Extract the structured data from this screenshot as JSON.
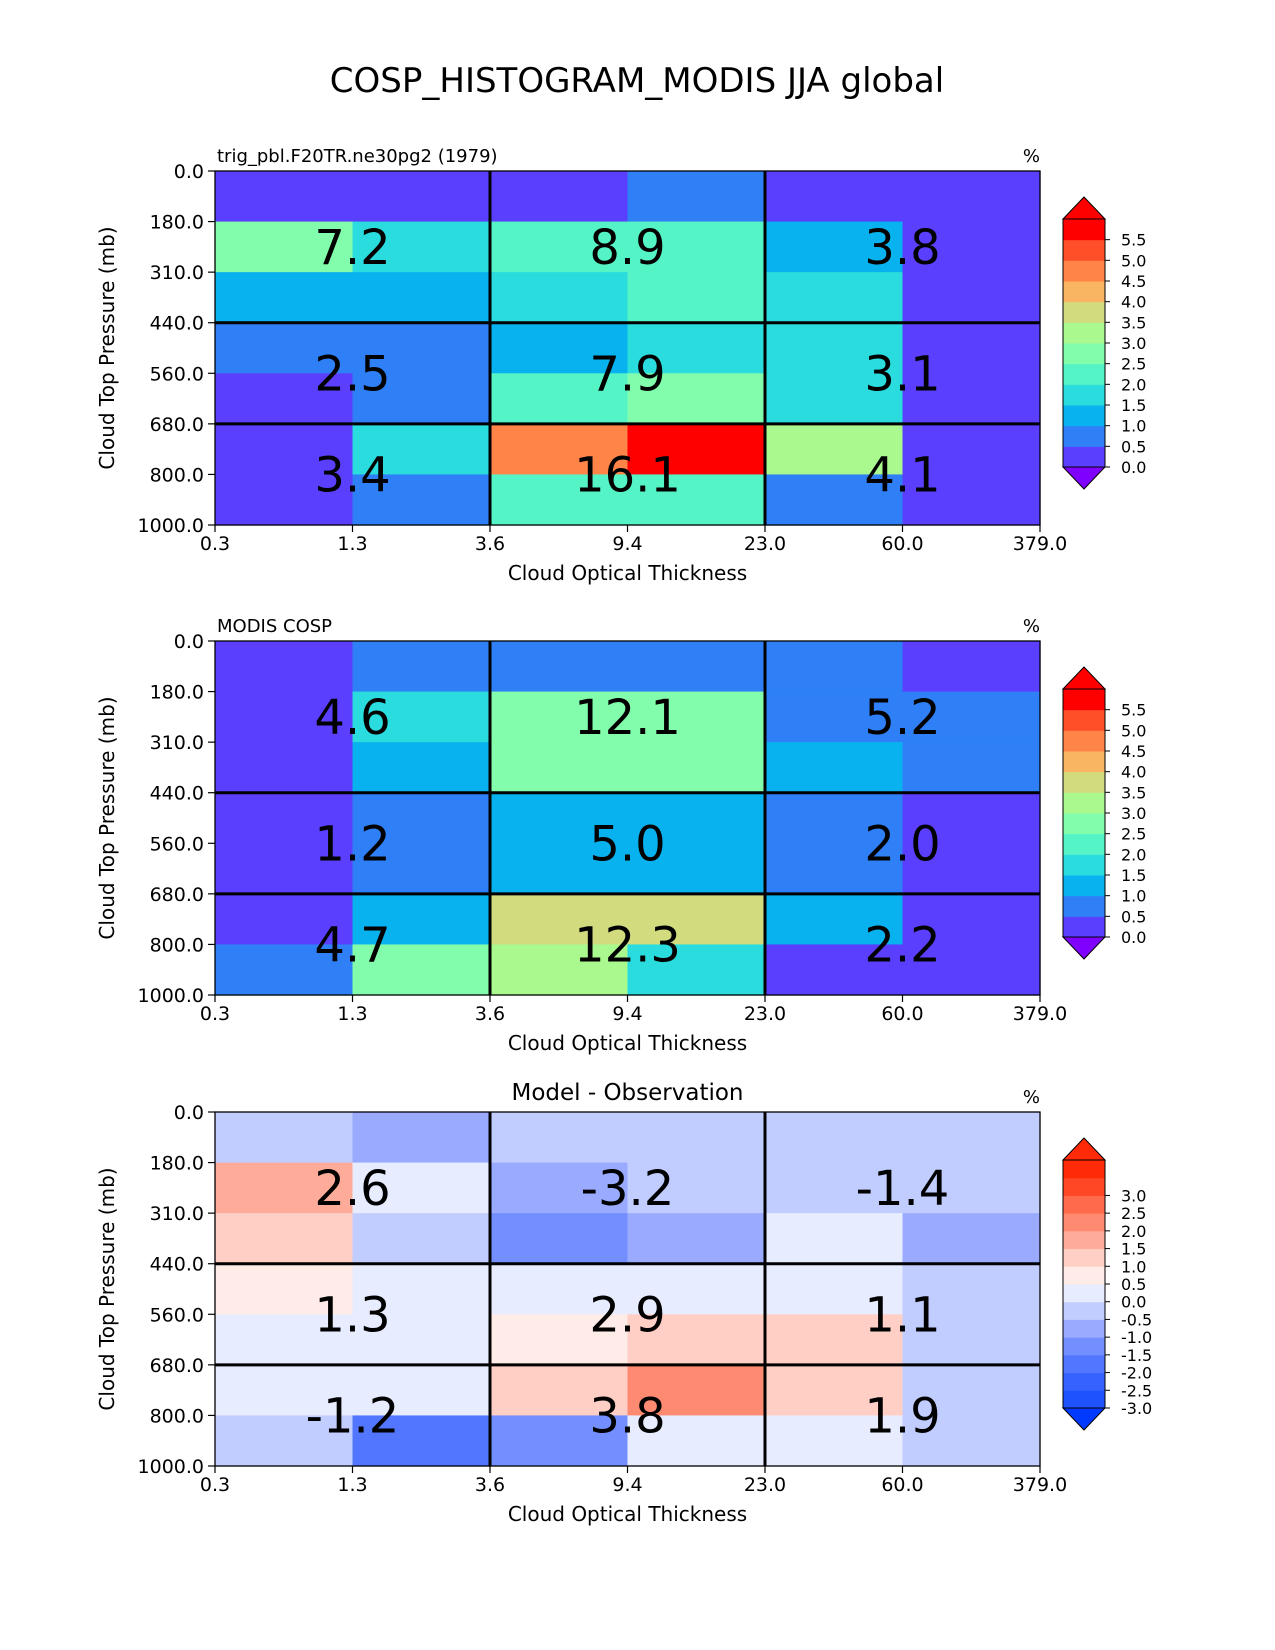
{
  "figure": {
    "suptitle": "COSP_HISTOGRAM_MODIS JJA global"
  },
  "chart_data": [
    {
      "type": "heatmap",
      "title_left": "trig_pbl.F20TR.ne30pg2 (1979)",
      "title_center": "",
      "units": "%",
      "xlabel": "Cloud Optical Thickness",
      "ylabel": "Cloud Top Pressure (mb)",
      "x_tick_labels": [
        "0.3",
        "1.3",
        "3.6",
        "9.4",
        "23.0",
        "60.0",
        "379.0"
      ],
      "y_tick_labels": [
        "0.0",
        "180.0",
        "310.0",
        "440.0",
        "560.0",
        "680.0",
        "800.0",
        "1000.0"
      ],
      "values": [
        [
          0.1,
          0.1,
          0.1,
          0.8,
          0.1,
          0.1
        ],
        [
          2.9,
          1.8,
          2.2,
          2.2,
          1.3,
          0.1
        ],
        [
          1.3,
          1.3,
          1.8,
          2.2,
          1.8,
          0.1
        ],
        [
          0.8,
          0.8,
          1.3,
          1.8,
          1.8,
          0.1
        ],
        [
          0.1,
          0.8,
          2.2,
          2.7,
          1.8,
          0.1
        ],
        [
          0.1,
          1.8,
          4.8,
          5.8,
          3.2,
          0.1
        ],
        [
          0.1,
          0.8,
          2.2,
          2.2,
          0.8,
          0.1
        ]
      ],
      "block_totals": [
        [
          "7.2",
          "8.9",
          "3.8"
        ],
        [
          "2.5",
          "7.9",
          "3.1"
        ],
        [
          "3.4",
          "16.1",
          "4.1"
        ]
      ],
      "colorbar": {
        "tick_labels": [
          "0.0",
          "0.5",
          "1.0",
          "1.5",
          "2.0",
          "2.5",
          "3.0",
          "3.5",
          "4.0",
          "4.5",
          "5.0",
          "5.5"
        ],
        "colors": [
          "#5a3fff",
          "#2f80f7",
          "#08b2ee",
          "#2adcdd",
          "#55f4c6",
          "#82fdac",
          "#a9f98f",
          "#d2dc7f",
          "#fab562",
          "#ff8448",
          "#ff4f28",
          "#ff0000"
        ],
        "under": "#7f00ff",
        "over": "#ff0000"
      }
    },
    {
      "type": "heatmap",
      "title_left": "MODIS COSP",
      "title_center": "",
      "units": "%",
      "xlabel": "Cloud Optical Thickness",
      "ylabel": "Cloud Top Pressure (mb)",
      "x_tick_labels": [
        "0.3",
        "1.3",
        "3.6",
        "9.4",
        "23.0",
        "60.0",
        "379.0"
      ],
      "y_tick_labels": [
        "0.0",
        "180.0",
        "310.0",
        "440.0",
        "560.0",
        "680.0",
        "800.0",
        "1000.0"
      ],
      "values": [
        [
          0.1,
          0.8,
          0.8,
          0.8,
          0.8,
          0.1
        ],
        [
          0.1,
          1.8,
          2.7,
          2.7,
          0.8,
          0.8
        ],
        [
          0.1,
          1.3,
          2.7,
          2.9,
          1.3,
          0.8
        ],
        [
          0.1,
          0.8,
          1.3,
          1.3,
          0.8,
          0.1
        ],
        [
          0.1,
          0.8,
          1.3,
          1.3,
          0.8,
          0.1
        ],
        [
          0.1,
          1.3,
          3.7,
          3.7,
          1.3,
          0.1
        ],
        [
          0.8,
          2.7,
          3.2,
          1.8,
          0.1,
          0.1
        ]
      ],
      "block_totals": [
        [
          "4.6",
          "12.1",
          "5.2"
        ],
        [
          "1.2",
          "5.0",
          "2.0"
        ],
        [
          "4.7",
          "12.3",
          "2.2"
        ]
      ],
      "colorbar": {
        "tick_labels": [
          "0.0",
          "0.5",
          "1.0",
          "1.5",
          "2.0",
          "2.5",
          "3.0",
          "3.5",
          "4.0",
          "4.5",
          "5.0",
          "5.5"
        ],
        "colors": [
          "#5a3fff",
          "#2f80f7",
          "#08b2ee",
          "#2adcdd",
          "#55f4c6",
          "#82fdac",
          "#a9f98f",
          "#d2dc7f",
          "#fab562",
          "#ff8448",
          "#ff4f28",
          "#ff0000"
        ],
        "under": "#7f00ff",
        "over": "#ff0000"
      }
    },
    {
      "type": "heatmap",
      "title_left": "",
      "title_center": "Model - Observation",
      "units": "%",
      "xlabel": "Cloud Optical Thickness",
      "ylabel": "Cloud Top Pressure (mb)",
      "x_tick_labels": [
        "0.3",
        "1.3",
        "3.6",
        "9.4",
        "23.0",
        "60.0",
        "379.0"
      ],
      "y_tick_labels": [
        "0.0",
        "180.0",
        "310.0",
        "440.0",
        "560.0",
        "680.0",
        "800.0",
        "1000.0"
      ],
      "values": [
        [
          -0.3,
          -0.8,
          -0.3,
          -0.3,
          -0.3,
          -0.3
        ],
        [
          1.8,
          0.2,
          -0.8,
          -0.3,
          -0.3,
          -0.3
        ],
        [
          1.3,
          -0.3,
          -1.3,
          -0.8,
          0.2,
          -0.8
        ],
        [
          0.8,
          0.2,
          0.2,
          0.2,
          0.2,
          -0.3
        ],
        [
          0.2,
          0.2,
          0.8,
          1.3,
          1.3,
          -0.3
        ],
        [
          0.2,
          0.2,
          1.3,
          2.3,
          1.3,
          -0.3
        ],
        [
          -0.3,
          -1.8,
          -1.3,
          0.2,
          0.2,
          -0.3
        ]
      ],
      "block_totals": [
        [
          "2.6",
          "-3.2",
          "-1.4"
        ],
        [
          "1.3",
          "2.9",
          "1.1"
        ],
        [
          "-1.2",
          "3.8",
          "1.9"
        ]
      ],
      "colorbar": {
        "tick_labels": [
          "-3.0",
          "-2.5",
          "-2.0",
          "-1.5",
          "-1.0",
          "-0.5",
          "0.0",
          "0.5",
          "1.0",
          "1.5",
          "2.0",
          "2.5",
          "3.0"
        ],
        "colors": [
          "#1e52ff",
          "#3663ff",
          "#5276ff",
          "#738fff",
          "#9aabff",
          "#c2cdff",
          "#e8ecff",
          "#ffece8",
          "#ffcfc6",
          "#ffab9a",
          "#ff8a72",
          "#ff6a4c",
          "#ff4726",
          "#ff2a08"
        ],
        "under": "#0039ff",
        "over": "#ff2a08"
      }
    }
  ]
}
